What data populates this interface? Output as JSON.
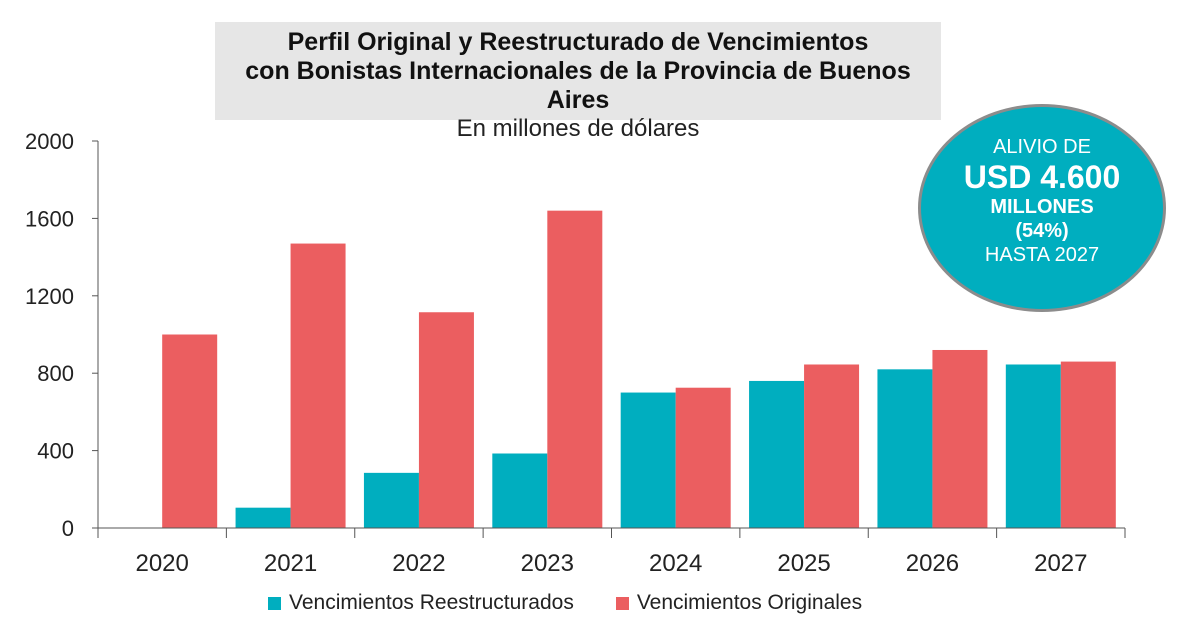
{
  "colors": {
    "restructured": "#00aebf",
    "original": "#eb5e60",
    "axis": "#555555",
    "title_bg": "#e6e6e6"
  },
  "header": {
    "title_line1": "Perfil Original y Reestructurado de Vencimientos",
    "title_line2": "con Bonistas Internacionales de la Provincia de Buenos Aires",
    "subtitle": "En millones de dólares"
  },
  "badge": {
    "line1": "ALIVIO DE",
    "line2": "USD 4.600",
    "line3": "MILLONES",
    "line4": "(54%)",
    "line5": "HASTA 2027"
  },
  "chart_data": {
    "type": "bar",
    "title": "Perfil Original y Reestructurado de Vencimientos con Bonistas Internacionales de la Provincia de Buenos Aires",
    "subtitle": "En millones de dólares",
    "categories": [
      "2020",
      "2021",
      "2022",
      "2023",
      "2024",
      "2025",
      "2026",
      "2027"
    ],
    "series": [
      {
        "name": "Vencimientos Reestructurados",
        "values": [
          0,
          105,
          285,
          385,
          700,
          760,
          820,
          845
        ]
      },
      {
        "name": "Vencimientos Originales",
        "values": [
          1000,
          1470,
          1115,
          1640,
          725,
          845,
          920,
          860
        ]
      }
    ],
    "ylim": [
      0,
      2000
    ],
    "yticks": [
      "0",
      "400",
      "800",
      "1200",
      "1600",
      "2000"
    ],
    "xlabel": "",
    "ylabel": "",
    "legend_position": "bottom"
  }
}
